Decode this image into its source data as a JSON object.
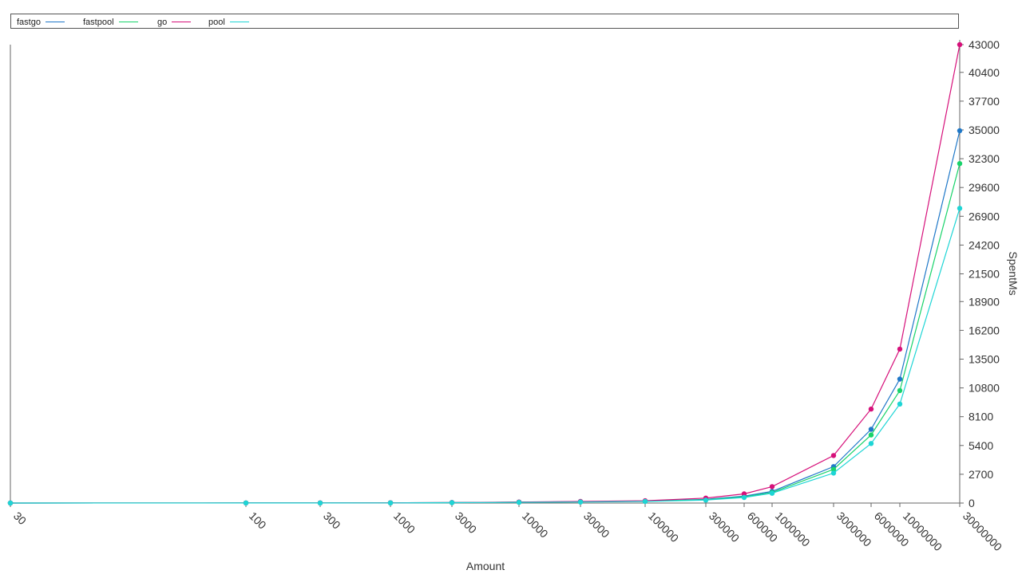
{
  "chart_data": {
    "type": "line",
    "xlabel": "Amount",
    "ylabel": "SpentMs",
    "x_axis_type": "categorical, unevenly spaced",
    "categories": [
      "30",
      "100",
      "300",
      "1000",
      "3000",
      "10000",
      "30000",
      "100000",
      "300000",
      "600000",
      "1000000",
      "3000000",
      "6000000",
      "10000000",
      "30000000"
    ],
    "y_ticks": [
      0,
      2700,
      5400,
      8100,
      10800,
      13500,
      16200,
      18900,
      21500,
      24200,
      26900,
      29600,
      32300,
      35000,
      37700,
      40400,
      43000
    ],
    "ylim": [
      0,
      43000
    ],
    "grid": false,
    "legend_position": "top",
    "y_axis_position": "right",
    "series": [
      {
        "name": "fastgo",
        "color": "#1f78c8",
        "values": [
          2,
          5,
          10,
          20,
          40,
          80,
          120,
          180,
          350,
          640,
          1090,
          3420,
          6920,
          11630,
          34920
        ]
      },
      {
        "name": "fastpool",
        "color": "#18d36a",
        "values": [
          2,
          5,
          10,
          20,
          40,
          80,
          120,
          170,
          310,
          580,
          990,
          3160,
          6390,
          10550,
          31840
        ]
      },
      {
        "name": "go",
        "color": "#d6107a",
        "values": [
          3,
          6,
          12,
          25,
          50,
          95,
          150,
          220,
          460,
          860,
          1540,
          4460,
          8820,
          14440,
          43000
        ]
      },
      {
        "name": "pool",
        "color": "#1ed5d5",
        "values": [
          2,
          4,
          9,
          18,
          35,
          70,
          100,
          150,
          280,
          520,
          920,
          2810,
          5590,
          9290,
          27650
        ]
      }
    ]
  }
}
